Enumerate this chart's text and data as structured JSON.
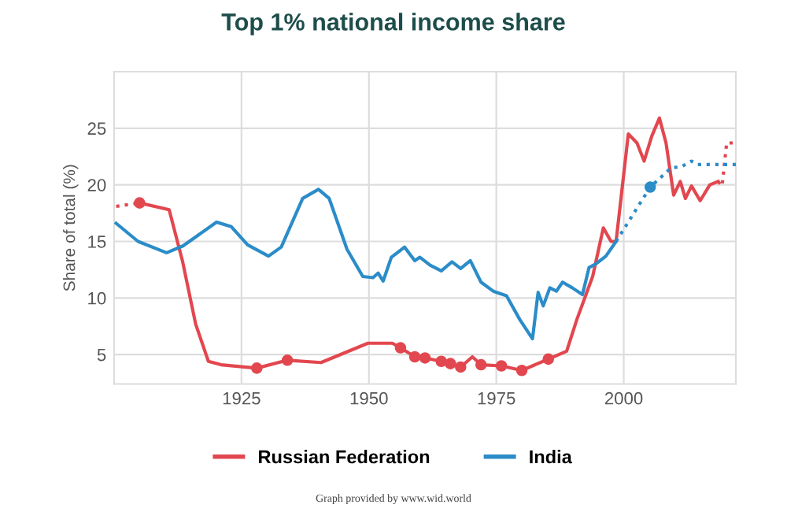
{
  "chart_data": {
    "type": "line",
    "title": "Top 1% national income share",
    "ylabel": "Share of total (%)",
    "xlim": [
      1900,
      2022
    ],
    "xticks": [
      1925,
      1950,
      1975,
      2000
    ],
    "ylim": [
      2.4,
      30
    ],
    "yticks": [
      5,
      10,
      15,
      20,
      25
    ],
    "grid": true,
    "legend": "bottom",
    "annotations": [
      "Graph provided by www.wid.world"
    ],
    "series": [
      {
        "name": "Russian Federation",
        "color": "#e2474f",
        "line_style": "solid",
        "x": [
          1905,
          1910.8,
          1913.4,
          1916,
          1918.5,
          1921,
          1928,
          1934,
          1940.6,
          1949.8,
          1954.6,
          1956.2,
          1959,
          1961,
          1964.2,
          1966,
          1968,
          1970.3,
          1972,
          1976,
          1980,
          1985.2,
          1988.8,
          1990.8,
          1993.9,
          1996,
          1997.5,
          1998.5,
          2000.9,
          2002.6,
          2004,
          2005.5,
          2007,
          2008.3,
          2009.8,
          2011.1,
          2012.1,
          2013.3,
          2015,
          2016.9,
          2018.5
        ],
        "values": [
          18.4,
          17.8,
          13.3,
          7.7,
          4.4,
          4.1,
          3.8,
          4.5,
          4.3,
          6.0,
          6.0,
          5.6,
          4.8,
          4.7,
          4.4,
          4.2,
          3.9,
          4.8,
          4.1,
          4.0,
          3.6,
          4.6,
          5.3,
          8.1,
          11.9,
          16.2,
          15.0,
          15.0,
          24.5,
          23.7,
          22.1,
          24.3,
          25.9,
          23.7,
          19.1,
          20.3,
          18.8,
          19.9,
          18.6,
          20.0,
          20.3
        ]
      },
      {
        "name": "India",
        "color": "#2b8cc8",
        "line_style": "solid",
        "x": [
          1900.4,
          1904.7,
          1910.3,
          1913.5,
          1920.1,
          1923,
          1926.2,
          1930.3,
          1932.8,
          1937,
          1940.1,
          1942.2,
          1945.7,
          1948.8,
          1950.8,
          1951.8,
          1952.8,
          1954.4,
          1957,
          1959,
          1960,
          1962,
          1964.2,
          1966.3,
          1968,
          1969.9,
          1972,
          1974.4,
          1977,
          1979.6,
          1982.1,
          1983.2,
          1984.2,
          1985.5,
          1986.8,
          1988,
          1989.9,
          1991.9,
          1993.2,
          1994.5,
          1996.5,
          1998.5
        ],
        "values": [
          16.6,
          15.0,
          14.0,
          14.6,
          16.7,
          16.3,
          14.7,
          13.7,
          14.5,
          18.8,
          19.6,
          18.8,
          14.3,
          11.9,
          11.8,
          12.2,
          11.5,
          13.6,
          14.5,
          13.3,
          13.6,
          12.9,
          12.4,
          13.2,
          12.6,
          13.3,
          11.4,
          10.6,
          10.2,
          8.1,
          6.4,
          10.5,
          9.3,
          10.9,
          10.6,
          11.4,
          10.9,
          10.3,
          12.7,
          13.0,
          13.7,
          15.0
        ]
      },
      {
        "color": "#e2474f",
        "line_style": "dotted",
        "x": [
          1900.4,
          1905
        ],
        "values": [
          18.1,
          18.4
        ]
      },
      {
        "color": "#e2474f",
        "line_style": "dotted",
        "x": [
          2018.5,
          2019.3,
          2020.2,
          2021.7
        ],
        "values": [
          20.3,
          19.9,
          23.7,
          23.7
        ]
      },
      {
        "color": "#2b8cc8",
        "line_style": "dotted",
        "x": [
          1998.5,
          2005.2,
          2009.3,
          2011.3,
          2013.3,
          2014.5,
          2022
        ],
        "values": [
          15.0,
          19.8,
          21.5,
          21.6,
          22.1,
          21.8,
          21.8
        ]
      },
      {
        "color": "#e2474f",
        "type": "scatter",
        "marker": "circle",
        "x": [
          1905,
          1928,
          1934,
          1956.2,
          1959,
          1961,
          1964.2,
          1966,
          1968,
          1972,
          1976,
          1980,
          1985.2
        ],
        "values": [
          18.4,
          3.8,
          4.5,
          5.6,
          4.8,
          4.7,
          4.4,
          4.2,
          3.9,
          4.1,
          4.0,
          3.6,
          4.6
        ]
      },
      {
        "color": "#2b8cc8",
        "type": "scatter",
        "marker": "circle",
        "x": [
          2005.2
        ],
        "values": [
          19.8
        ]
      }
    ]
  }
}
